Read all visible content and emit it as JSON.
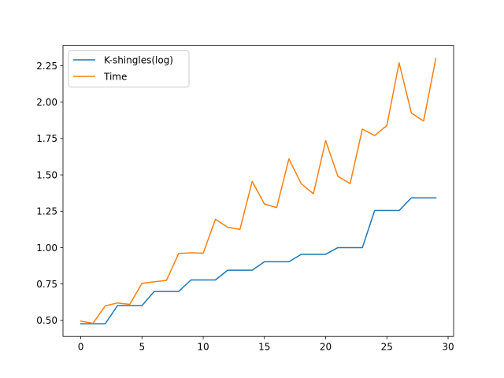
{
  "chart_data": {
    "type": "line",
    "title": "",
    "xlabel": "",
    "ylabel": "",
    "xlim": [
      -1.45,
      30.45
    ],
    "ylim": [
      0.39,
      2.39
    ],
    "x_ticks": [
      0,
      5,
      10,
      15,
      20,
      25,
      30
    ],
    "x_tick_labels": [
      "0",
      "5",
      "10",
      "15",
      "20",
      "25",
      "30"
    ],
    "y_ticks": [
      0.5,
      0.75,
      1.0,
      1.25,
      1.5,
      1.75,
      2.0,
      2.25
    ],
    "y_tick_labels": [
      "0.50",
      "0.75",
      "1.00",
      "1.25",
      "1.50",
      "1.75",
      "2.00",
      "2.25"
    ],
    "grid": false,
    "legend_position": "top-left",
    "x": [
      0,
      1,
      2,
      3,
      4,
      5,
      6,
      7,
      8,
      9,
      10,
      11,
      12,
      13,
      14,
      15,
      16,
      17,
      18,
      19,
      20,
      21,
      22,
      23,
      24,
      25,
      26,
      27,
      28,
      29
    ],
    "series": [
      {
        "name": "K-shingles(log)",
        "color": "#1f77b4",
        "values": [
          0.477,
          0.477,
          0.477,
          0.602,
          0.602,
          0.602,
          0.699,
          0.699,
          0.699,
          0.778,
          0.778,
          0.778,
          0.845,
          0.845,
          0.845,
          0.903,
          0.903,
          0.903,
          0.954,
          0.954,
          0.954,
          1.0,
          1.0,
          1.0,
          1.255,
          1.255,
          1.255,
          1.342,
          1.342,
          1.342
        ]
      },
      {
        "name": "Time",
        "color": "#ff7f0e",
        "values": [
          0.495,
          0.48,
          0.6,
          0.62,
          0.61,
          0.755,
          0.765,
          0.775,
          0.96,
          0.965,
          0.962,
          1.195,
          1.14,
          1.125,
          1.455,
          1.3,
          1.275,
          1.61,
          1.44,
          1.37,
          1.735,
          1.49,
          1.44,
          1.815,
          1.77,
          1.84,
          2.27,
          1.925,
          1.87,
          2.3
        ]
      }
    ]
  }
}
